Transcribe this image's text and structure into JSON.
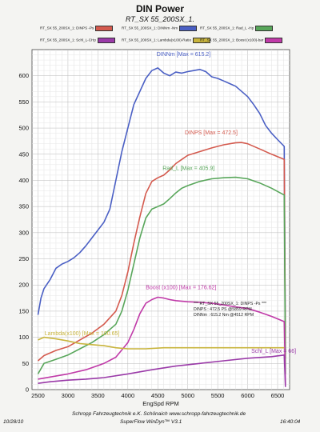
{
  "header": {
    "title": "DIN Power",
    "subtitle": "RT_SX 55_200SX_1."
  },
  "legend_entries": [
    {
      "label": "RT_SX 55_200SX_1: DINPS -Ps",
      "color": "#d45a4e"
    },
    {
      "label": "RT_SX 55_200SX_1: DINNm -Nm",
      "color": "#4a5fc4"
    },
    {
      "label": "RT_SX 55_200SX_1: Rad_L -Hp",
      "color": "#58a65a"
    },
    {
      "label": "RT_SX 55_200SX_1: Schl_L-CHp",
      "color": "#9a3aa8"
    },
    {
      "label": "RT_SX 55_200SX_1: Lambda(x100)-Ratio",
      "color": "#c8b43c"
    },
    {
      "label": "RT_SX 55_200SX_1: Boost (x100)-bar",
      "color": "#c03aa8"
    }
  ],
  "chart_data": {
    "type": "line",
    "xlabel": "EngSpd RPM",
    "ylabel": "",
    "xlim": [
      2400,
      6700
    ],
    "ylim": [
      0,
      650
    ],
    "xticks": [
      2500,
      3000,
      3500,
      4000,
      4500,
      5000,
      5500,
      6000,
      6500
    ],
    "yticks": [
      0,
      50,
      100,
      150,
      200,
      250,
      300,
      350,
      400,
      450,
      500,
      550,
      600
    ],
    "grid": true,
    "series": [
      {
        "name": "DINNm",
        "color": "#4a5fc4",
        "points": [
          [
            2500,
            143
          ],
          [
            2550,
            175
          ],
          [
            2600,
            193
          ],
          [
            2700,
            210
          ],
          [
            2800,
            232
          ],
          [
            2900,
            240
          ],
          [
            3000,
            245
          ],
          [
            3100,
            252
          ],
          [
            3200,
            262
          ],
          [
            3300,
            275
          ],
          [
            3400,
            290
          ],
          [
            3500,
            305
          ],
          [
            3600,
            320
          ],
          [
            3700,
            345
          ],
          [
            3800,
            400
          ],
          [
            3900,
            455
          ],
          [
            4000,
            500
          ],
          [
            4100,
            545
          ],
          [
            4200,
            570
          ],
          [
            4300,
            595
          ],
          [
            4400,
            610
          ],
          [
            4500,
            615
          ],
          [
            4600,
            605
          ],
          [
            4700,
            600
          ],
          [
            4800,
            607
          ],
          [
            4900,
            605
          ],
          [
            5000,
            608
          ],
          [
            5100,
            610
          ],
          [
            5200,
            612
          ],
          [
            5300,
            608
          ],
          [
            5400,
            598
          ],
          [
            5500,
            595
          ],
          [
            5600,
            590
          ],
          [
            5700,
            585
          ],
          [
            5800,
            580
          ],
          [
            5900,
            570
          ],
          [
            6000,
            560
          ],
          [
            6100,
            545
          ],
          [
            6200,
            528
          ],
          [
            6300,
            505
          ],
          [
            6400,
            490
          ],
          [
            6500,
            478
          ],
          [
            6610,
            465
          ],
          [
            6630,
            70
          ]
        ]
      },
      {
        "name": "DINPS",
        "color": "#d45a4e",
        "points": [
          [
            2500,
            55
          ],
          [
            2600,
            65
          ],
          [
            2800,
            75
          ],
          [
            3000,
            82
          ],
          [
            3200,
            95
          ],
          [
            3400,
            108
          ],
          [
            3600,
            125
          ],
          [
            3800,
            150
          ],
          [
            3900,
            180
          ],
          [
            4000,
            225
          ],
          [
            4100,
            280
          ],
          [
            4200,
            330
          ],
          [
            4300,
            375
          ],
          [
            4400,
            398
          ],
          [
            4500,
            405
          ],
          [
            4600,
            410
          ],
          [
            4700,
            420
          ],
          [
            4800,
            432
          ],
          [
            4900,
            440
          ],
          [
            5000,
            448
          ],
          [
            5200,
            455
          ],
          [
            5400,
            462
          ],
          [
            5600,
            468
          ],
          [
            5800,
            472
          ],
          [
            5900,
            472.5
          ],
          [
            6000,
            470
          ],
          [
            6200,
            460
          ],
          [
            6400,
            450
          ],
          [
            6610,
            440
          ],
          [
            6630,
            60
          ]
        ]
      },
      {
        "name": "Rad_L",
        "color": "#58a65a",
        "points": [
          [
            2500,
            30
          ],
          [
            2600,
            50
          ],
          [
            2800,
            58
          ],
          [
            3000,
            66
          ],
          [
            3200,
            78
          ],
          [
            3400,
            90
          ],
          [
            3600,
            105
          ],
          [
            3800,
            125
          ],
          [
            3900,
            150
          ],
          [
            4000,
            190
          ],
          [
            4100,
            240
          ],
          [
            4200,
            290
          ],
          [
            4300,
            328
          ],
          [
            4400,
            345
          ],
          [
            4500,
            350
          ],
          [
            4600,
            355
          ],
          [
            4700,
            365
          ],
          [
            4800,
            376
          ],
          [
            4900,
            385
          ],
          [
            5000,
            390
          ],
          [
            5200,
            398
          ],
          [
            5400,
            403
          ],
          [
            5600,
            405
          ],
          [
            5800,
            405.9
          ],
          [
            6000,
            403
          ],
          [
            6200,
            395
          ],
          [
            6400,
            385
          ],
          [
            6610,
            372
          ],
          [
            6630,
            30
          ]
        ]
      },
      {
        "name": "Boost (x100)",
        "color": "#c03aa8",
        "points": [
          [
            2500,
            20
          ],
          [
            2700,
            24
          ],
          [
            3000,
            30
          ],
          [
            3300,
            38
          ],
          [
            3600,
            50
          ],
          [
            3800,
            62
          ],
          [
            4000,
            90
          ],
          [
            4100,
            115
          ],
          [
            4200,
            145
          ],
          [
            4300,
            165
          ],
          [
            4400,
            172
          ],
          [
            4500,
            176.62
          ],
          [
            4600,
            175
          ],
          [
            4700,
            172
          ],
          [
            4800,
            170
          ],
          [
            5000,
            168
          ],
          [
            5200,
            167
          ],
          [
            5400,
            165
          ],
          [
            5600,
            162
          ],
          [
            5800,
            158
          ],
          [
            6000,
            155
          ],
          [
            6200,
            148
          ],
          [
            6400,
            140
          ],
          [
            6610,
            130
          ],
          [
            6630,
            10
          ]
        ]
      },
      {
        "name": "Lambda(x100)",
        "color": "#c8b43c",
        "points": [
          [
            2500,
            95
          ],
          [
            2600,
            100
          ],
          [
            2800,
            97
          ],
          [
            3000,
            93
          ],
          [
            3200,
            88
          ],
          [
            3400,
            86
          ],
          [
            3600,
            84
          ],
          [
            3800,
            80
          ],
          [
            4000,
            78
          ],
          [
            4300,
            78
          ],
          [
            4600,
            80
          ],
          [
            5000,
            80
          ],
          [
            5500,
            80
          ],
          [
            6000,
            80
          ],
          [
            6610,
            80
          ]
        ]
      },
      {
        "name": "Schl_L",
        "color": "#9a3aa8",
        "points": [
          [
            2500,
            12
          ],
          [
            2700,
            15
          ],
          [
            3000,
            18
          ],
          [
            3300,
            20
          ],
          [
            3600,
            23
          ],
          [
            4000,
            30
          ],
          [
            4400,
            38
          ],
          [
            4800,
            45
          ],
          [
            5200,
            50
          ],
          [
            5600,
            55
          ],
          [
            6000,
            60
          ],
          [
            6400,
            63
          ],
          [
            6610,
            66
          ],
          [
            6630,
            5
          ]
        ]
      }
    ],
    "annotations": [
      {
        "text": "DINNm  [Max = 615.2]",
        "color": "#4a5fc4",
        "x": 4480,
        "y": 638
      },
      {
        "text": "DINPS  [Max = 472.5]",
        "color": "#d45a4e",
        "x": 4950,
        "y": 488
      },
      {
        "text": "Rad_L  [Max = 405.9]",
        "color": "#58a65a",
        "x": 4580,
        "y": 420
      },
      {
        "text": "Boost (x100) [Max = 176.62]",
        "color": "#c03aa8",
        "x": 4300,
        "y": 192
      },
      {
        "text": "Lambda(x100) [Max = 100.65]",
        "color": "#c8b43c",
        "x": 2610,
        "y": 104
      },
      {
        "text": "Schl_L [Max = 66]",
        "color": "#9a3aa8",
        "x": 6060,
        "y": 70
      }
    ],
    "info_box": [
      "*** RT_SX 55_200SX_1: DINPS -Ps  ***",
      "DINPS :  472.5 PS    @5859 RPM",
      "DINNm :  615.2 Nm    @4512 RPM"
    ]
  },
  "footer": {
    "company": "Schropp Fahrzeugtechnik e.K.  Schönaich   www.schropp-fahrzeugtechnik.de",
    "software": "SuperFlow WinDyn™ V3.1",
    "date": "10/28/10",
    "time": "16:40:04"
  }
}
